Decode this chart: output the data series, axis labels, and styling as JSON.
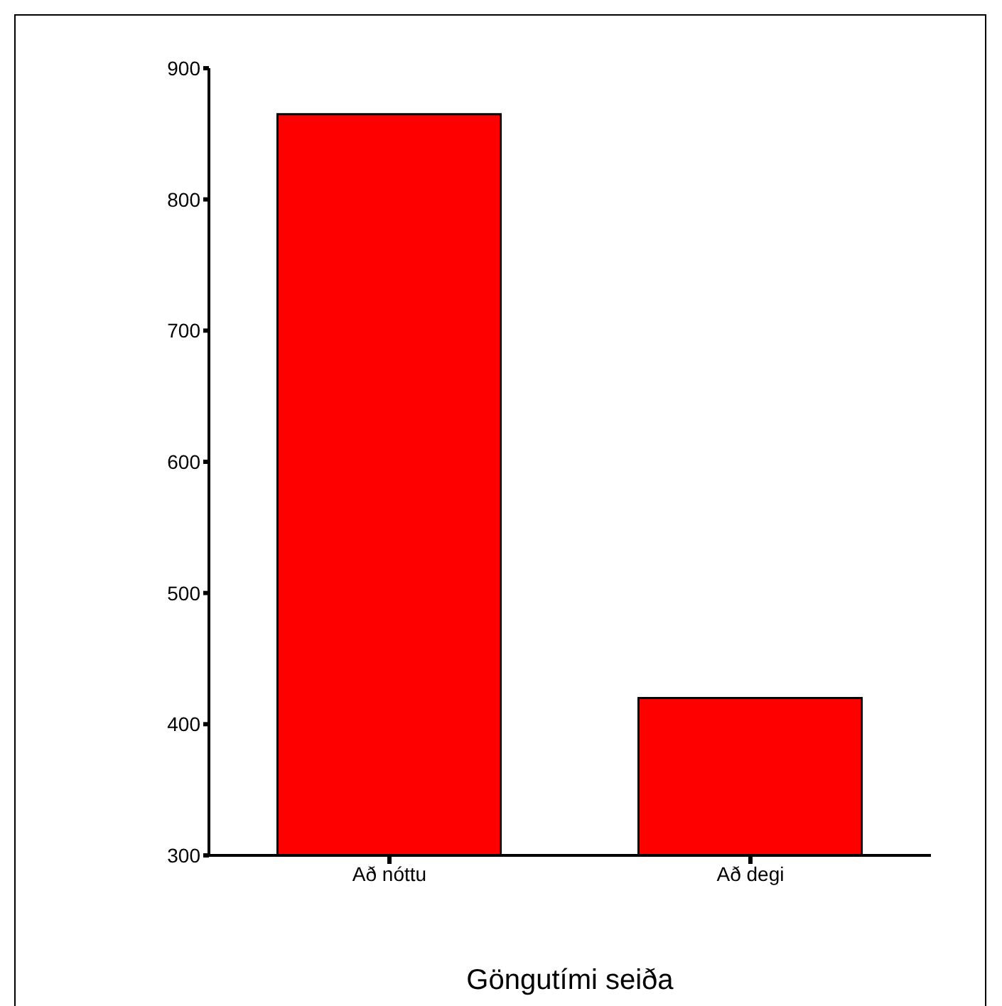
{
  "chart_data": {
    "type": "bar",
    "xlabel": "Göngutími seiða",
    "categories": [
      "Að nóttu",
      "Að degi"
    ],
    "values": [
      865,
      420
    ],
    "color": "#ff0000",
    "ylim": [
      300,
      900
    ],
    "yticks": [
      300,
      400,
      500,
      600,
      700,
      800,
      900
    ]
  }
}
